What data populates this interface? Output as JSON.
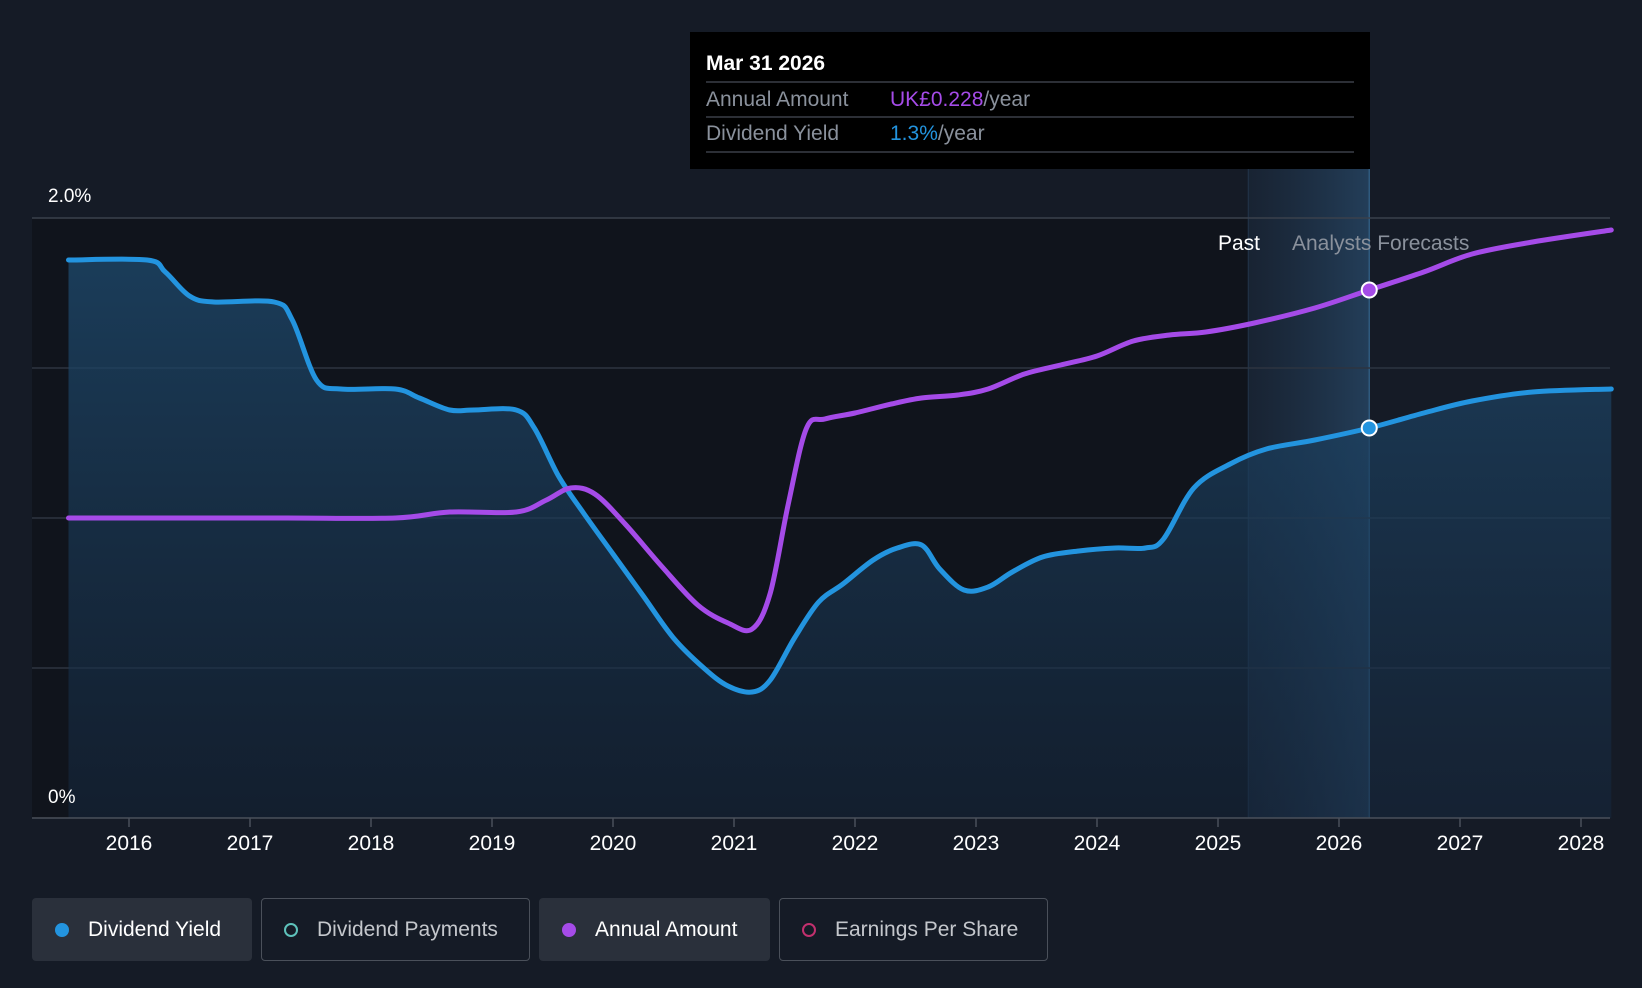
{
  "colors": {
    "background": "#151b26",
    "plot_past": "#10141c",
    "yield": "#2394df",
    "annual": "#a54be8",
    "payments": "#5ec2bb",
    "eps": "#c2306e",
    "grid": "#2d3440",
    "tooltip_bg": "#000000"
  },
  "tooltip": {
    "date": "Mar 31 2026",
    "row1_label": "Annual Amount",
    "row1_value": "UK£0.228",
    "row1_unit": "/year",
    "row2_label": "Dividend Yield",
    "row2_value": "1.3%",
    "row2_unit": "/year"
  },
  "labels": {
    "past": "Past",
    "forecast": "Analysts Forecasts"
  },
  "legend": [
    {
      "label": "Dividend Yield",
      "style": "filled",
      "color": "#2394df",
      "active": true
    },
    {
      "label": "Dividend Payments",
      "style": "hollow",
      "color": "#5ec2bb",
      "active": false
    },
    {
      "label": "Annual Amount",
      "style": "filled",
      "color": "#a54be8",
      "active": true
    },
    {
      "label": "Earnings Per Share",
      "style": "hollow",
      "color": "#c2306e",
      "active": false
    }
  ],
  "chart_data": {
    "type": "area",
    "x_ticks": [
      "2016",
      "2017",
      "2018",
      "2019",
      "2020",
      "2021",
      "2022",
      "2023",
      "2024",
      "2025",
      "2026",
      "2027",
      "2028"
    ],
    "y_tick_labels": [
      "0%",
      "2.0%"
    ],
    "ylim": [
      0,
      2.0
    ],
    "xlim": [
      2015.0,
      2028.25
    ],
    "forecast_start": 2025.25,
    "hover_x": 2026.25,
    "legend_placement": "bottom",
    "grid": "horizontal",
    "series": [
      {
        "name": "Dividend Yield",
        "unit": "%",
        "area": true,
        "points": [
          [
            2015.5,
            1.86
          ],
          [
            2016.15,
            1.86
          ],
          [
            2016.3,
            1.82
          ],
          [
            2016.5,
            1.74
          ],
          [
            2016.7,
            1.72
          ],
          [
            2017.2,
            1.72
          ],
          [
            2017.35,
            1.66
          ],
          [
            2017.55,
            1.46
          ],
          [
            2017.75,
            1.43
          ],
          [
            2018.2,
            1.43
          ],
          [
            2018.4,
            1.4
          ],
          [
            2018.65,
            1.36
          ],
          [
            2018.85,
            1.36
          ],
          [
            2019.2,
            1.36
          ],
          [
            2019.35,
            1.3
          ],
          [
            2019.55,
            1.14
          ],
          [
            2019.75,
            1.02
          ],
          [
            2020.0,
            0.88
          ],
          [
            2020.25,
            0.74
          ],
          [
            2020.5,
            0.6
          ],
          [
            2020.75,
            0.5
          ],
          [
            2020.95,
            0.44
          ],
          [
            2021.15,
            0.42
          ],
          [
            2021.3,
            0.46
          ],
          [
            2021.5,
            0.6
          ],
          [
            2021.7,
            0.72
          ],
          [
            2021.9,
            0.78
          ],
          [
            2022.15,
            0.86
          ],
          [
            2022.35,
            0.9
          ],
          [
            2022.55,
            0.91
          ],
          [
            2022.7,
            0.83
          ],
          [
            2022.9,
            0.76
          ],
          [
            2023.1,
            0.77
          ],
          [
            2023.3,
            0.82
          ],
          [
            2023.55,
            0.87
          ],
          [
            2023.85,
            0.89
          ],
          [
            2024.15,
            0.9
          ],
          [
            2024.4,
            0.9
          ],
          [
            2024.55,
            0.93
          ],
          [
            2024.8,
            1.1
          ],
          [
            2025.1,
            1.18
          ],
          [
            2025.4,
            1.23
          ],
          [
            2025.8,
            1.26
          ],
          [
            2026.25,
            1.3
          ],
          [
            2026.7,
            1.35
          ],
          [
            2027.1,
            1.39
          ],
          [
            2027.6,
            1.42
          ],
          [
            2028.25,
            1.43
          ]
        ]
      },
      {
        "name": "Annual Amount",
        "unit": "UK£",
        "area": false,
        "points": [
          [
            2015.5,
            1.0
          ],
          [
            2016.3,
            1.0
          ],
          [
            2017.3,
            1.0
          ],
          [
            2018.2,
            1.0
          ],
          [
            2018.65,
            1.02
          ],
          [
            2019.2,
            1.02
          ],
          [
            2019.45,
            1.06
          ],
          [
            2019.65,
            1.1
          ],
          [
            2019.85,
            1.08
          ],
          [
            2020.1,
            0.98
          ],
          [
            2020.4,
            0.84
          ],
          [
            2020.7,
            0.71
          ],
          [
            2020.95,
            0.65
          ],
          [
            2021.15,
            0.63
          ],
          [
            2021.3,
            0.75
          ],
          [
            2021.45,
            1.05
          ],
          [
            2021.6,
            1.3
          ],
          [
            2021.75,
            1.33
          ],
          [
            2022.0,
            1.35
          ],
          [
            2022.3,
            1.38
          ],
          [
            2022.55,
            1.4
          ],
          [
            2022.85,
            1.41
          ],
          [
            2023.1,
            1.43
          ],
          [
            2023.4,
            1.48
          ],
          [
            2023.7,
            1.51
          ],
          [
            2024.0,
            1.54
          ],
          [
            2024.3,
            1.59
          ],
          [
            2024.6,
            1.61
          ],
          [
            2024.9,
            1.62
          ],
          [
            2025.3,
            1.65
          ],
          [
            2025.8,
            1.7
          ],
          [
            2026.25,
            1.76
          ],
          [
            2026.7,
            1.82
          ],
          [
            2027.1,
            1.88
          ],
          [
            2027.6,
            1.92
          ],
          [
            2028.25,
            1.96
          ]
        ]
      }
    ]
  }
}
